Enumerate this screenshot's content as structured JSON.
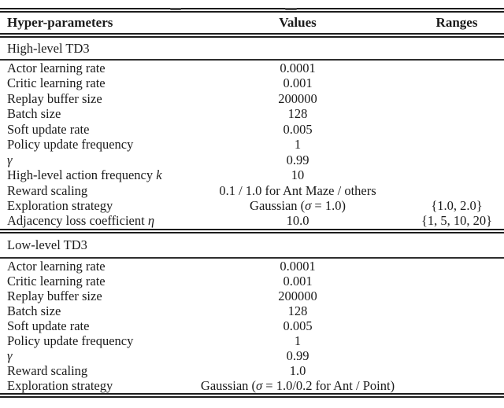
{
  "table": {
    "columns": [
      "Hyper-parameters",
      "Values",
      "Ranges"
    ],
    "sections": [
      {
        "title": "High-level TD3",
        "rows": [
          {
            "label": "Actor learning rate",
            "value": "0.0001",
            "range": ""
          },
          {
            "label": "Critic learning rate",
            "value": "0.001",
            "range": ""
          },
          {
            "label": "Replay buffer size",
            "value": "200000",
            "range": ""
          },
          {
            "label": "Batch size",
            "value": "128",
            "range": ""
          },
          {
            "label": "Soft update rate",
            "value": "0.005",
            "range": ""
          },
          {
            "label": "Policy update frequency",
            "value": "1",
            "range": ""
          },
          {
            "label": [
              {
                "t": "γ",
                "i": true
              }
            ],
            "value": "0.99",
            "range": ""
          },
          {
            "label": [
              {
                "t": "High-level action frequency ",
                "i": false
              },
              {
                "t": "k",
                "i": true
              }
            ],
            "value": "10",
            "range": ""
          },
          {
            "label": "Reward scaling",
            "value": "0.1 / 1.0 for Ant Maze / others",
            "range": ""
          },
          {
            "label": "Exploration strategy",
            "value": [
              {
                "t": "Gaussian (",
                "i": false
              },
              {
                "t": "σ",
                "i": true
              },
              {
                "t": " = 1.0)",
                "i": false
              }
            ],
            "range": "{1.0, 2.0}"
          },
          {
            "label": [
              {
                "t": "Adjacency loss coefficient ",
                "i": false
              },
              {
                "t": "η",
                "i": true
              }
            ],
            "value": "10.0",
            "range": "{1, 5, 10, 20}"
          }
        ]
      },
      {
        "title": "Low-level TD3",
        "rows": [
          {
            "label": "Actor learning rate",
            "value": "0.0001",
            "range": ""
          },
          {
            "label": "Critic learning rate",
            "value": "0.001",
            "range": ""
          },
          {
            "label": "Replay buffer size",
            "value": "200000",
            "range": ""
          },
          {
            "label": "Batch size",
            "value": "128",
            "range": ""
          },
          {
            "label": "Soft update rate",
            "value": "0.005",
            "range": ""
          },
          {
            "label": "Policy update frequency",
            "value": "1",
            "range": ""
          },
          {
            "label": [
              {
                "t": "γ",
                "i": true
              }
            ],
            "value": "0.99",
            "range": ""
          },
          {
            "label": "Reward scaling",
            "value": "1.0",
            "range": ""
          },
          {
            "label": "Exploration strategy",
            "value": [
              {
                "t": "Gaussian (",
                "i": false
              },
              {
                "t": "σ",
                "i": true
              },
              {
                "t": " = 1.0/0.2 for Ant / Point)",
                "i": false
              }
            ],
            "range": ""
          }
        ]
      }
    ]
  },
  "colors": {
    "rule": "#1c1c1c",
    "text": "#1a1a1a",
    "background": "#ffffff"
  }
}
